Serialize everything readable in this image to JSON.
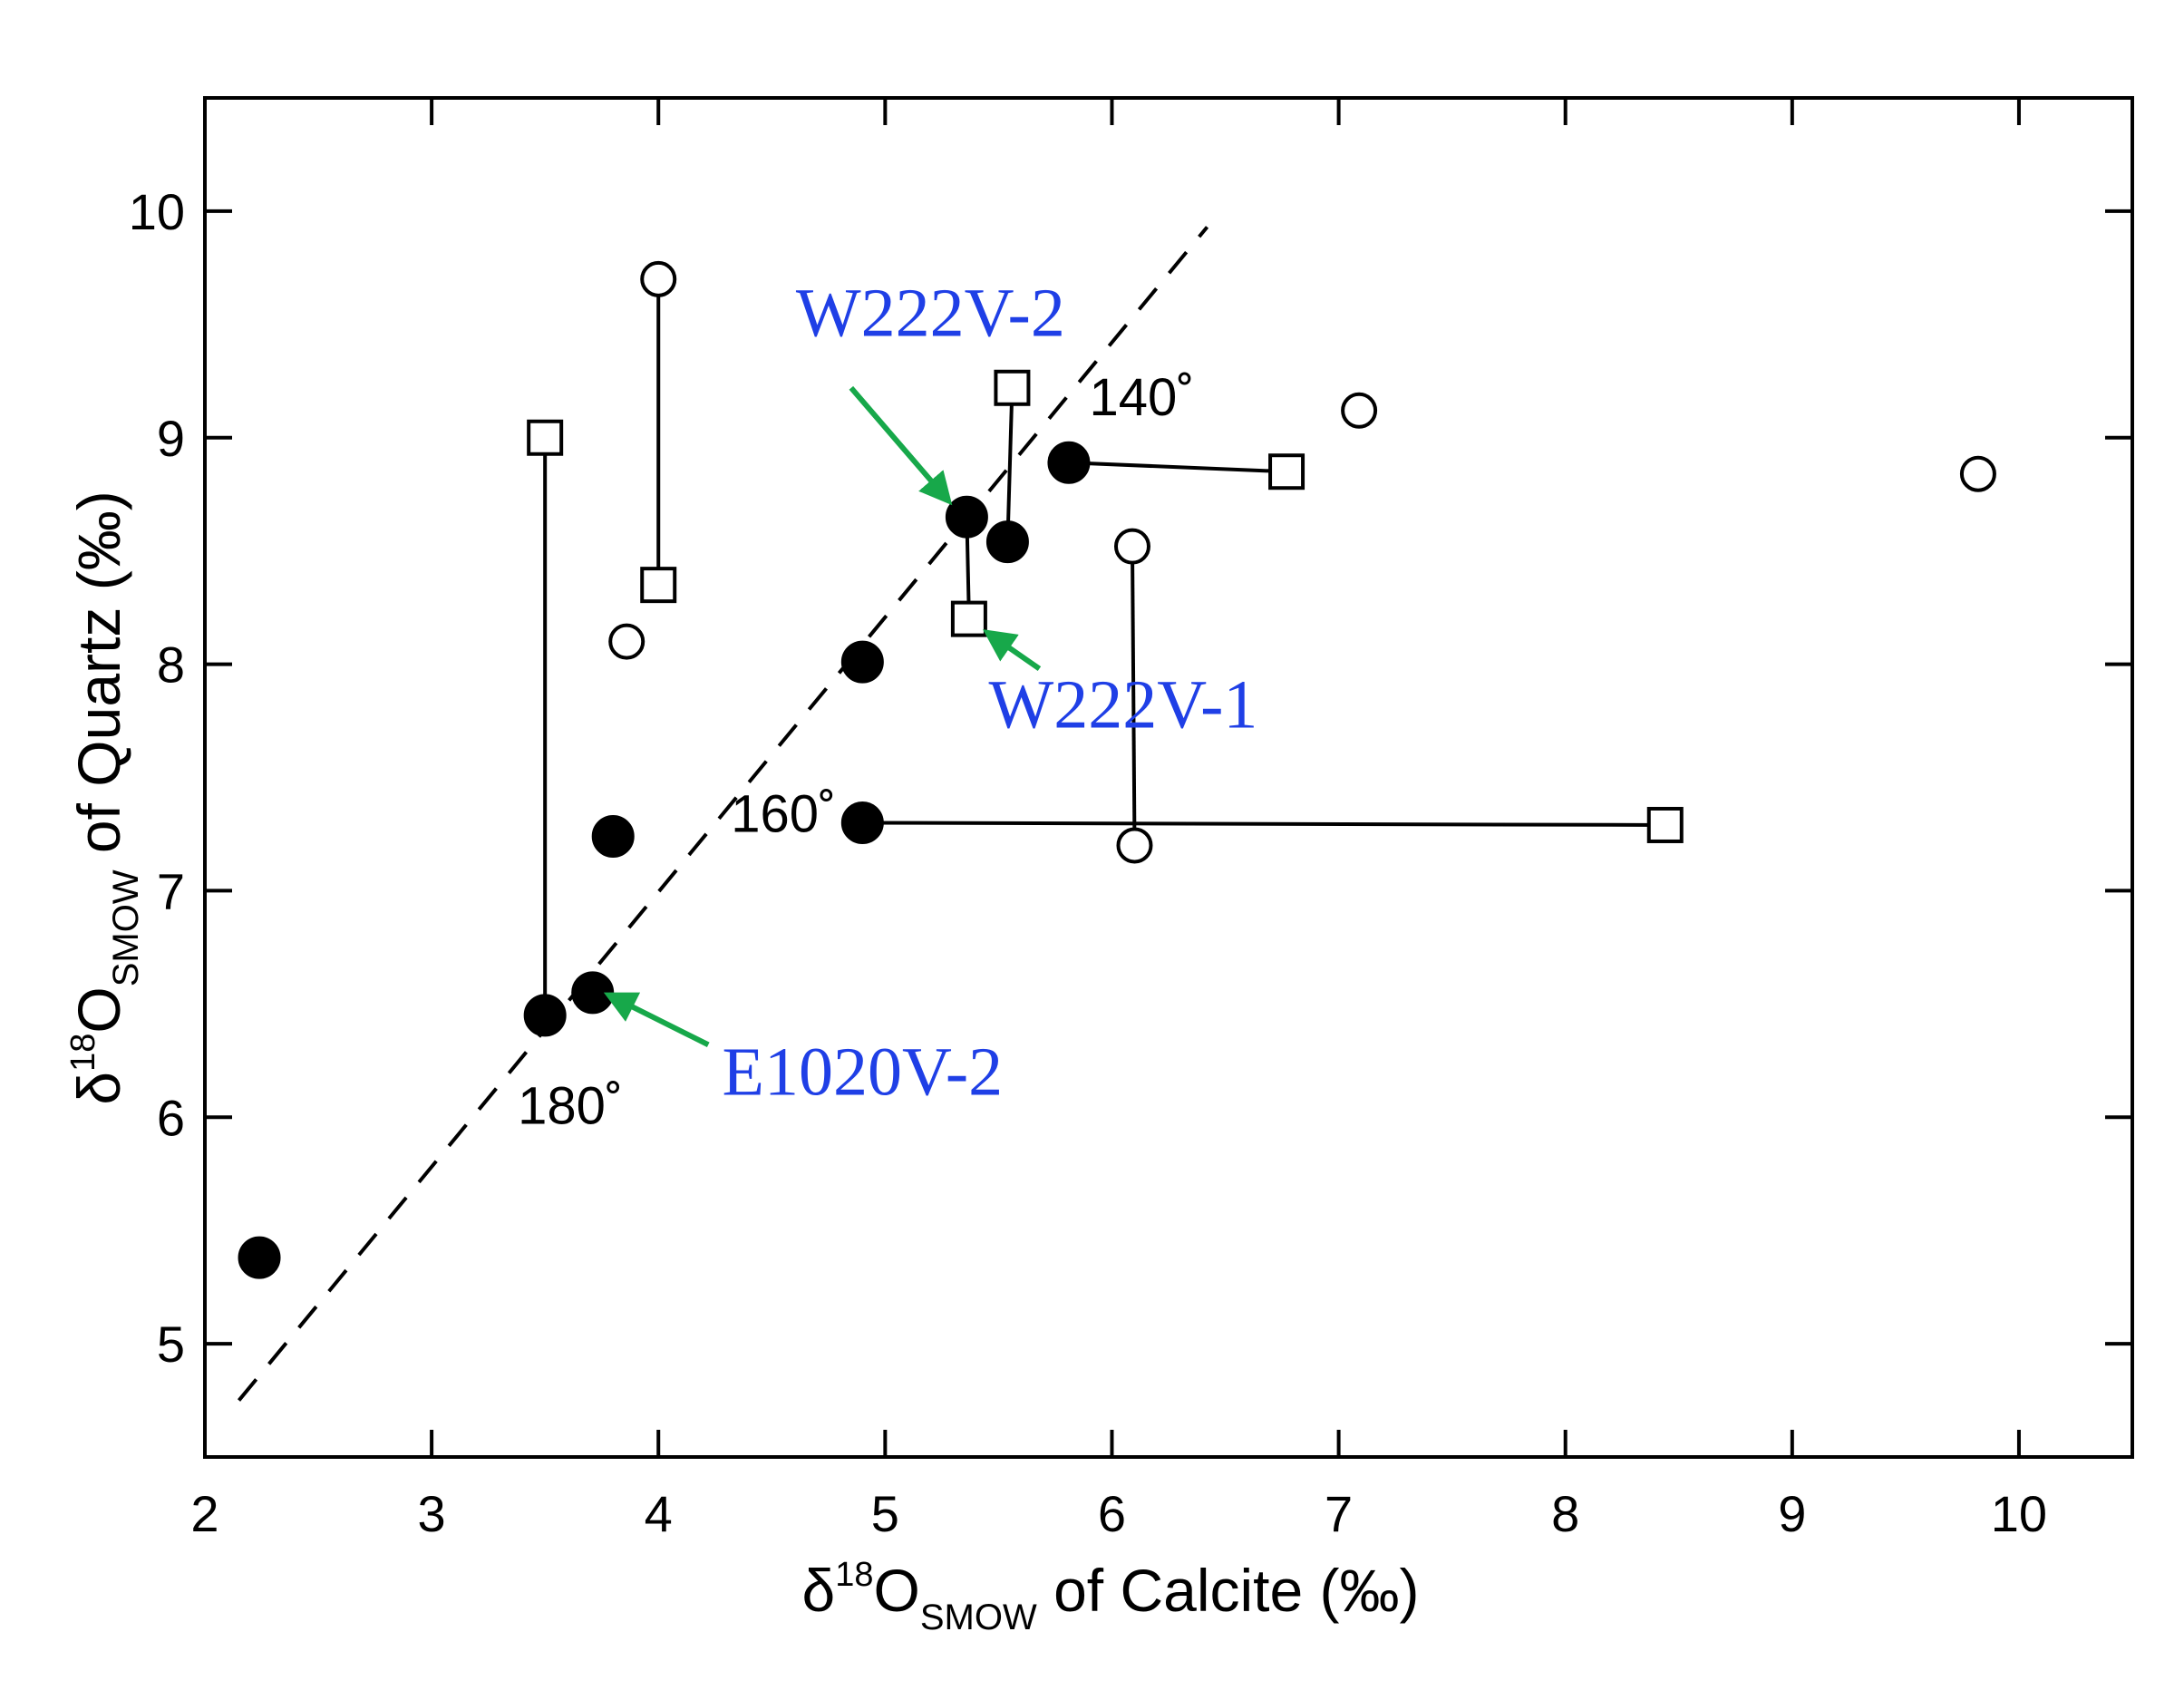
{
  "chart_data": {
    "type": "scatter",
    "title": "",
    "xlabel": {
      "prefix": "δ",
      "sup": "18",
      "main": "O",
      "sub": "SMOW",
      "suffix": " of Calcite (‰)"
    },
    "ylabel": {
      "prefix": "δ",
      "sup": "18",
      "main": "O",
      "sub": "SMOW",
      "suffix": " of Quartz (‰)"
    },
    "xlim": [
      2,
      10.5
    ],
    "ylim": [
      4.5,
      10.5
    ],
    "xticks": [
      2,
      3,
      4,
      5,
      6,
      7,
      8,
      9,
      10
    ],
    "yticks": [
      5,
      6,
      7,
      8,
      9,
      10
    ],
    "xtick_labels": [
      "2",
      "3",
      "4",
      "5",
      "6",
      "7",
      "8",
      "9",
      "10"
    ],
    "ytick_labels": [
      "5",
      "6",
      "7",
      "8",
      "9",
      "10"
    ],
    "grid": false,
    "series": [
      {
        "marker": "filled-circle",
        "points": [
          [
            2.24,
            5.38
          ],
          [
            3.5,
            6.45
          ],
          [
            3.71,
            6.55
          ],
          [
            3.8,
            7.24
          ],
          [
            4.9,
            7.3
          ],
          [
            4.9,
            8.01
          ],
          [
            5.36,
            8.65
          ],
          [
            5.54,
            8.54
          ],
          [
            5.81,
            8.89
          ]
        ]
      },
      {
        "marker": "open-circle",
        "points": [
          [
            3.86,
            8.1
          ],
          [
            4.0,
            9.7
          ],
          [
            6.09,
            8.52
          ],
          [
            6.1,
            7.2
          ],
          [
            7.09,
            9.12
          ],
          [
            9.82,
            8.84
          ]
        ]
      },
      {
        "marker": "open-square",
        "points": [
          [
            3.5,
            9.0
          ],
          [
            4.0,
            8.35
          ],
          [
            5.37,
            8.2
          ],
          [
            5.56,
            9.22
          ],
          [
            6.77,
            8.85
          ],
          [
            8.44,
            7.29
          ]
        ]
      }
    ],
    "tie_lines": [
      [
        [
          3.5,
          6.45
        ],
        [
          3.5,
          9.0
        ]
      ],
      [
        [
          4.0,
          8.35
        ],
        [
          4.0,
          9.7
        ]
      ],
      [
        [
          5.36,
          8.65
        ],
        [
          5.37,
          8.2
        ]
      ],
      [
        [
          5.54,
          8.54
        ],
        [
          5.56,
          9.22
        ]
      ],
      [
        [
          5.81,
          8.89
        ],
        [
          6.77,
          8.85
        ]
      ],
      [
        [
          4.9,
          7.3
        ],
        [
          8.44,
          7.29
        ]
      ],
      [
        [
          6.09,
          8.52
        ],
        [
          6.1,
          7.2
        ]
      ]
    ],
    "dashed_line": [
      [
        2.15,
        4.75
      ],
      [
        6.42,
        9.93
      ]
    ],
    "annotations": [
      {
        "text": "140˚",
        "x": 5.9,
        "y": 9.1,
        "kind": "temperature"
      },
      {
        "text": "160˚",
        "x": 4.32,
        "y": 7.26,
        "kind": "temperature"
      },
      {
        "text": "180˚",
        "x": 3.38,
        "y": 5.97,
        "kind": "temperature"
      }
    ],
    "sample_labels": [
      {
        "text": "W222V-2",
        "x": 5.2,
        "y": 9.45,
        "arrow_from": [
          4.85,
          9.22
        ],
        "arrow_to": [
          5.28,
          8.72
        ]
      },
      {
        "text": "W222V-1",
        "x": 6.05,
        "y": 7.72,
        "arrow_from": [
          5.68,
          7.98
        ],
        "arrow_to": [
          5.45,
          8.14
        ]
      },
      {
        "text": "E1020V-2",
        "x": 4.9,
        "y": 6.1,
        "arrow_from": [
          4.22,
          6.32
        ],
        "arrow_to": [
          3.78,
          6.54
        ]
      }
    ],
    "colors": {
      "sample_label": "#1f3fe6",
      "arrow": "#17a84a",
      "marks": "#000000"
    }
  }
}
